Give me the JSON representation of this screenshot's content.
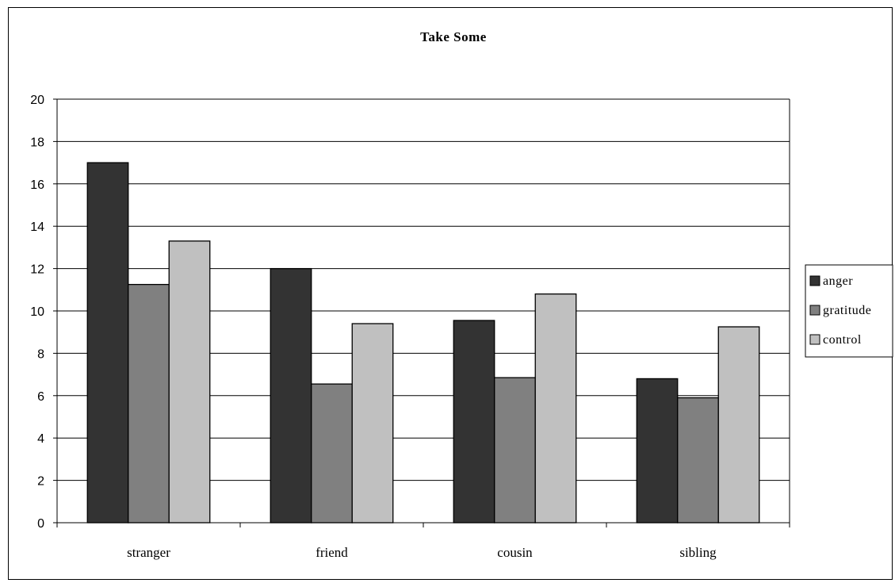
{
  "chart_data": {
    "type": "bar",
    "title": "Take Some",
    "xlabel": "",
    "ylabel": "",
    "categories": [
      "stranger",
      "friend",
      "cousin",
      "sibling"
    ],
    "series": [
      {
        "name": "anger",
        "values": [
          17.0,
          12.0,
          9.55,
          6.8
        ],
        "color": "#333333"
      },
      {
        "name": "gratitude",
        "values": [
          11.25,
          6.55,
          6.85,
          5.9
        ],
        "color": "#808080"
      },
      {
        "name": "control",
        "values": [
          13.3,
          9.4,
          10.8,
          9.25
        ],
        "color": "#c0c0c0"
      }
    ],
    "ylim": [
      0,
      20
    ],
    "yticks": [
      "0",
      "2",
      "4",
      "6",
      "8",
      "10",
      "12",
      "14",
      "16",
      "18",
      "20"
    ],
    "grid": true,
    "legend_position": "right"
  }
}
